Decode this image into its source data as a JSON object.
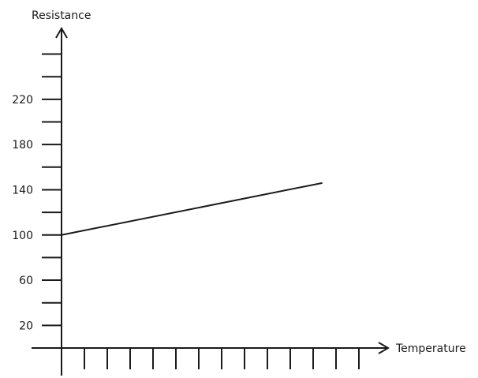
{
  "chart_data": {
    "type": "line",
    "title": "",
    "xlabel": "Temperature",
    "ylabel": "Resistance",
    "y_tick_labels": [
      "20",
      "60",
      "100",
      "140",
      "180",
      "220"
    ],
    "y_tick_values": [
      20,
      60,
      100,
      140,
      180,
      220
    ],
    "y_minor_tick_count": 13,
    "x_tick_count": 14,
    "x_tick_step": 1,
    "ylim": [
      0,
      260
    ],
    "xlim": [
      0,
      14
    ],
    "grid": false,
    "series": [
      {
        "points": [
          {
            "x": 0,
            "y": 100
          },
          {
            "x": 11.4,
            "y": 146
          }
        ],
        "color": "#1a1a1a"
      }
    ]
  }
}
